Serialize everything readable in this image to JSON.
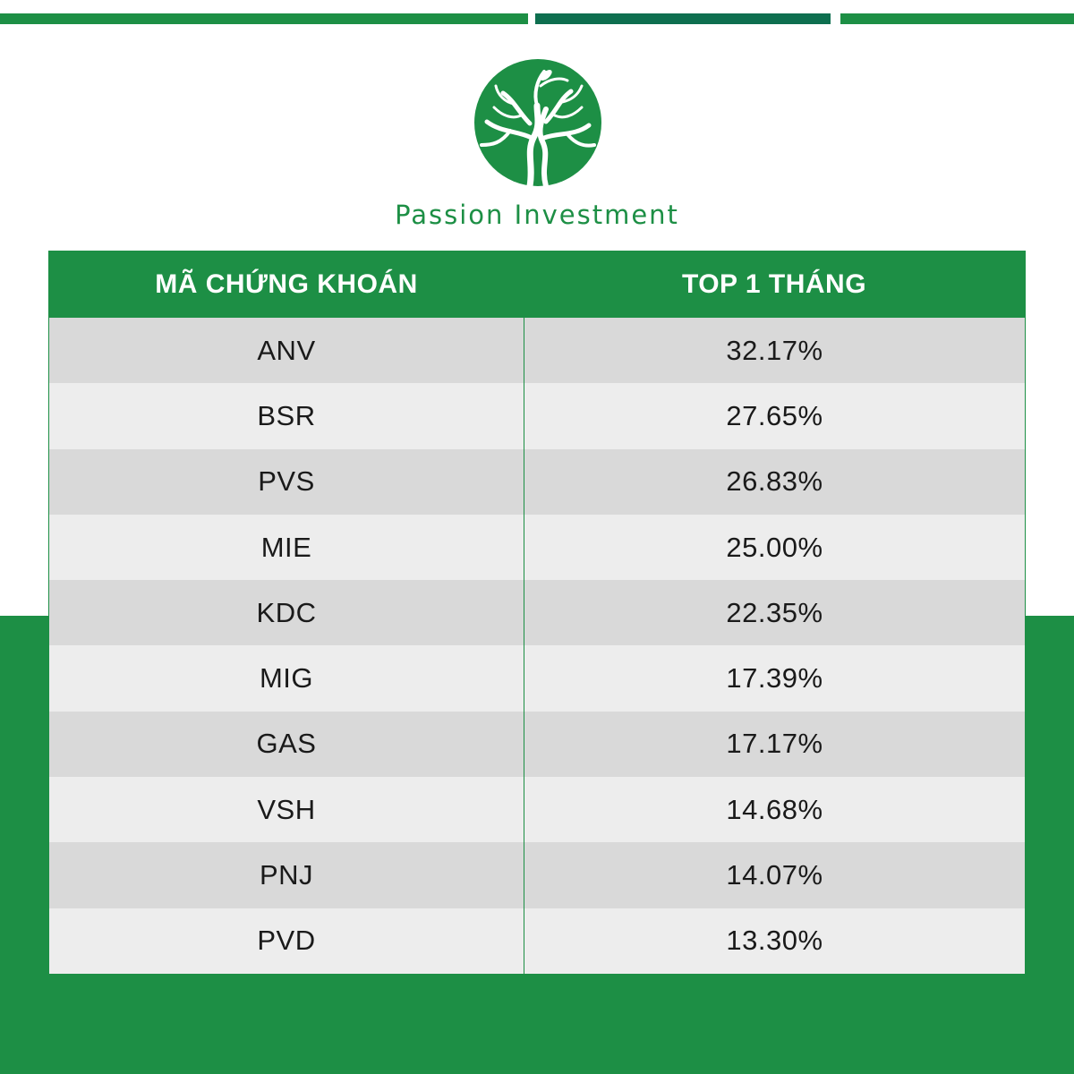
{
  "colors": {
    "brand_green": "#1d8f45",
    "top_bar_dark": "#0e6f4f",
    "row_odd": "#d9d9d9",
    "row_even": "#ededed"
  },
  "logo": {
    "icon": "tree-logo-icon"
  },
  "brand": {
    "name": "Passion Investment"
  },
  "table": {
    "headers": [
      "MÃ CHỨNG KHOÁN",
      "TOP 1 THÁNG"
    ],
    "rows": [
      {
        "ticker": "ANV",
        "value": "32.17%"
      },
      {
        "ticker": "BSR",
        "value": "27.65%"
      },
      {
        "ticker": "PVS",
        "value": "26.83%"
      },
      {
        "ticker": "MIE",
        "value": "25.00%"
      },
      {
        "ticker": "KDC",
        "value": "22.35%"
      },
      {
        "ticker": "MIG",
        "value": "17.39%"
      },
      {
        "ticker": "GAS",
        "value": "17.17%"
      },
      {
        "ticker": "VSH",
        "value": "14.68%"
      },
      {
        "ticker": "PNJ",
        "value": "14.07%"
      },
      {
        "ticker": "PVD",
        "value": "13.30%"
      }
    ]
  }
}
